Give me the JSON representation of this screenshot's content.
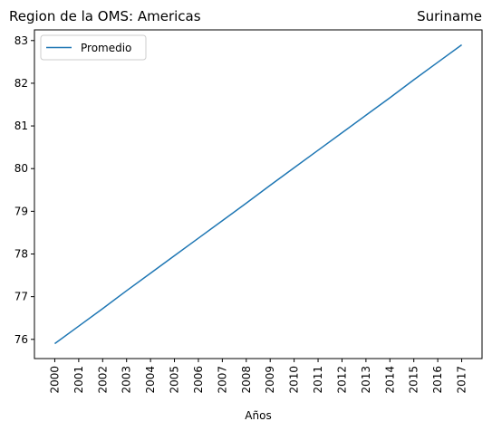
{
  "chart_data": {
    "type": "line",
    "title_left": "Region de la OMS: Americas",
    "title_right": "Suriname",
    "xlabel": "Años",
    "ylabel": "",
    "x": [
      2000,
      2001,
      2002,
      2003,
      2004,
      2005,
      2006,
      2007,
      2008,
      2009,
      2010,
      2011,
      2012,
      2013,
      2014,
      2015,
      2016,
      2017
    ],
    "series": [
      {
        "name": "Promedio",
        "color": "#1f77b4",
        "values": [
          75.9,
          76.31,
          76.72,
          77.14,
          77.55,
          77.96,
          78.37,
          78.78,
          79.19,
          79.61,
          80.02,
          80.43,
          80.84,
          81.25,
          81.66,
          82.08,
          82.49,
          82.9
        ]
      }
    ],
    "yticks": [
      76,
      77,
      78,
      79,
      80,
      81,
      82,
      83
    ],
    "ylim": [
      75.55,
      83.25
    ],
    "grid": false,
    "legend_position": "upper-left"
  }
}
